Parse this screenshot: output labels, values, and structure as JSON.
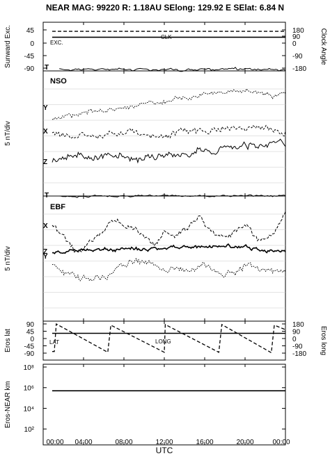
{
  "title": {
    "text": "NEAR MAG: 99220 R: 1.18AU SElong: 129.92 E SElat: 6.84 N"
  },
  "x_axis": {
    "label": "UTC",
    "ticks": [
      "00:00",
      "04:00",
      "08:00",
      "12:00",
      "16:00",
      "20:00",
      "00:00"
    ],
    "tick_hours": [
      0,
      4,
      8,
      12,
      16,
      20,
      24
    ]
  },
  "panels": {
    "sun": {
      "left_label": "Sunward Exc.",
      "right_label": "Clock Angle",
      "left_ticks": [
        "45",
        "0",
        "-45",
        "-90"
      ],
      "right_ticks": [
        "180",
        "90",
        "0",
        "-90",
        "-180"
      ],
      "exc_label": "EXC.",
      "clk_label": "CLK",
      "t_label": "T"
    },
    "nso": {
      "name": "NSO",
      "axis_label": "5 nT/div",
      "labels": [
        "Y",
        "X",
        "Z"
      ],
      "t_label": "T"
    },
    "ebf": {
      "name": "EBF",
      "axis_label": "5 nT/div",
      "labels": [
        "X",
        "Z",
        "Y"
      ]
    },
    "eros": {
      "left_label": "Eros lat",
      "right_label": "Eros long",
      "left_ticks": [
        "90",
        "45",
        "0",
        "-45",
        "-90"
      ],
      "right_ticks": [
        "180",
        "90",
        "0",
        "-90",
        "-180"
      ],
      "lat_label": "LAT",
      "long_label": "LONG"
    },
    "dist": {
      "left_label": "Eros-NEAR km",
      "ticks": [
        "10⁸",
        "10⁶",
        "10⁴",
        "10²"
      ]
    }
  },
  "chart_data": [
    {
      "type": "line",
      "panel": "Sunward Exc. / Clock Angle",
      "xlabel": "UTC",
      "x_unit": "hours",
      "ylabel": "Sunward Exc.",
      "ylim": [
        -90,
        90
      ],
      "y2label": "Clock Angle",
      "y2lim": [
        -180,
        180
      ],
      "series": [
        {
          "name": "EXC.",
          "x": [
            0.9,
            24
          ],
          "values": [
            20,
            20
          ]
        },
        {
          "name": "CLK",
          "axis": "right",
          "x": [
            0.9,
            24
          ],
          "values": [
            80,
            80
          ]
        }
      ]
    },
    {
      "type": "line",
      "panel": "NSO",
      "xlabel": "UTC",
      "x_unit": "hours",
      "ylabel": "5 nT/div",
      "series": [
        {
          "name": "Y",
          "x": [
            0.9,
            4,
            8,
            12,
            16,
            19,
            21,
            23,
            24
          ],
          "values": [
            -1.8,
            -1.0,
            -0.3,
            0.4,
            1.2,
            1.6,
            1.6,
            1.0,
            1.2
          ]
        },
        {
          "name": "X",
          "x": [
            0.9,
            4,
            8,
            12,
            16,
            20,
            22,
            23.5,
            24
          ],
          "values": [
            -0.4,
            -0.6,
            -0.3,
            -0.5,
            0.1,
            0.3,
            0.1,
            0.2,
            0.1
          ]
        },
        {
          "name": "Z",
          "x": [
            0.9,
            4,
            8,
            12,
            16,
            20,
            22,
            23.5,
            24
          ],
          "values": [
            -0.8,
            -0.3,
            -0.2,
            -0.4,
            0.4,
            1.0,
            0.8,
            1.5,
            1.2
          ]
        }
      ]
    },
    {
      "type": "line",
      "panel": "EBF",
      "xlabel": "UTC",
      "x_unit": "hours",
      "ylabel": "5 nT/div",
      "series": [
        {
          "name": "X",
          "x": [
            0.9,
            2,
            3.5,
            5.5,
            7,
            9,
            11,
            12,
            13,
            14,
            15.5,
            17,
            18.5,
            20,
            21.5,
            23,
            24
          ],
          "values": [
            1.2,
            0.0,
            -2.2,
            0.1,
            1.8,
            0.8,
            -1.0,
            0.6,
            -0.4,
            0.5,
            2.1,
            0.1,
            -0.4,
            1.8,
            -0.9,
            0.4,
            2.7
          ]
        },
        {
          "name": "Z",
          "x": [
            0.9,
            4,
            8,
            12,
            16,
            20,
            22,
            24
          ],
          "values": [
            -0.1,
            0.1,
            0.3,
            0.4,
            0.7,
            0.6,
            0.2,
            0.0
          ]
        },
        {
          "name": "Y",
          "x": [
            0.9,
            2,
            4,
            6,
            8,
            10,
            12,
            14,
            16,
            18,
            20,
            22,
            24
          ],
          "values": [
            -0.6,
            -1.8,
            -2.5,
            -2.2,
            -0.7,
            -0.1,
            -1.2,
            -1.6,
            -0.8,
            -1.9,
            -0.9,
            -1.3,
            -1.6
          ]
        }
      ]
    },
    {
      "type": "line",
      "panel": "Eros lat / Eros long",
      "xlabel": "UTC",
      "x_unit": "hours",
      "ylabel": "Eros lat",
      "ylim": [
        -90,
        90
      ],
      "y2label": "Eros long",
      "y2lim": [
        -180,
        180
      ],
      "series": [
        {
          "name": "LAT",
          "x": [
            0.9,
            24
          ],
          "values": [
            32,
            32
          ]
        },
        {
          "name": "LONG",
          "axis": "right",
          "x": [
            0.9,
            1.1,
            1.3,
            6.4,
            6.7,
            12.0,
            12.1,
            17.4,
            17.7,
            22.6,
            22.9,
            24
          ],
          "values": [
            -160,
            -160,
            180,
            -170,
            165,
            -170,
            172,
            -170,
            172,
            -175,
            165,
            110
          ]
        }
      ]
    },
    {
      "type": "line",
      "panel": "Eros-NEAR km",
      "xlabel": "UTC",
      "x_unit": "hours",
      "ylabel": "Eros-NEAR km",
      "yscale": "log",
      "ylim": [
        10,
        100000000
      ],
      "series": [
        {
          "name": "Eros-NEAR km",
          "x": [
            0.9,
            24
          ],
          "values": [
            500000,
            500000
          ]
        }
      ]
    }
  ]
}
